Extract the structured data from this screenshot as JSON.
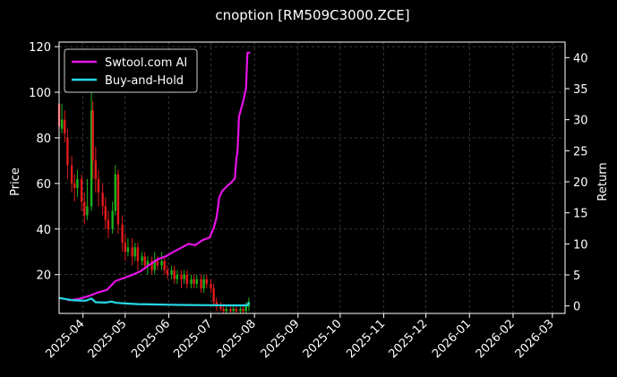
{
  "chart_data": {
    "type": "line",
    "title": "cnoption [RM509C3000.ZCE]",
    "ylabel_left": "Price",
    "ylabel_right": "Return",
    "x_ticks": [
      "2025-04",
      "2025-05",
      "2025-06",
      "2025-07",
      "2025-08",
      "2025-09",
      "2025-10",
      "2025-11",
      "2025-12",
      "2026-01",
      "2026-02",
      "2026-03"
    ],
    "x_range": [
      "2025-03-15",
      "2026-03-10"
    ],
    "y_left_ticks": [
      20,
      40,
      60,
      80,
      100,
      120
    ],
    "y_left_range": [
      3,
      122
    ],
    "y_right_ticks": [
      0,
      5,
      10,
      15,
      20,
      25,
      30,
      35,
      40
    ],
    "y_right_range": [
      -1.2,
      42.5
    ],
    "grid": true,
    "legend_position": "top-left",
    "background": "#000000",
    "up_color": "#1db31d",
    "down_color": "#e31a1a",
    "series": [
      {
        "name": "Swtool.com AI",
        "color": "#e612e6",
        "axis": "right",
        "points": [
          [
            "2025-03-21",
            0.9
          ],
          [
            "2025-03-25",
            1.0
          ],
          [
            "2025-03-30",
            1.2
          ],
          [
            "2025-04-05",
            1.6
          ],
          [
            "2025-04-12",
            2.2
          ],
          [
            "2025-04-18",
            2.6
          ],
          [
            "2025-04-24",
            4.0
          ],
          [
            "2025-04-30",
            4.5
          ],
          [
            "2025-05-06",
            5.0
          ],
          [
            "2025-05-12",
            5.6
          ],
          [
            "2025-05-18",
            6.6
          ],
          [
            "2025-05-24",
            7.5
          ],
          [
            "2025-05-30",
            8.0
          ],
          [
            "2025-06-05",
            8.8
          ],
          [
            "2025-06-11",
            9.5
          ],
          [
            "2025-06-15",
            10.0
          ],
          [
            "2025-06-20",
            9.8
          ],
          [
            "2025-06-25",
            10.6
          ],
          [
            "2025-06-30",
            11.0
          ],
          [
            "2025-07-03",
            12.5
          ],
          [
            "2025-07-05",
            14.2
          ],
          [
            "2025-07-07",
            17.5
          ],
          [
            "2025-07-09",
            18.5
          ],
          [
            "2025-07-12",
            19.2
          ],
          [
            "2025-07-15",
            19.8
          ],
          [
            "2025-07-18",
            20.5
          ],
          [
            "2025-07-19",
            23.5
          ],
          [
            "2025-07-20",
            25.0
          ],
          [
            "2025-07-21",
            30.5
          ],
          [
            "2025-07-24",
            33.0
          ],
          [
            "2025-07-26",
            35.0
          ],
          [
            "2025-07-27",
            40.8
          ],
          [
            "2025-07-29",
            40.8
          ]
        ]
      },
      {
        "name": "Buy-and-Hold",
        "color": "#26d9e6",
        "axis": "right",
        "points": [
          [
            "2025-03-15",
            1.3
          ],
          [
            "2025-03-25",
            0.9
          ],
          [
            "2025-04-03",
            0.85
          ],
          [
            "2025-04-07",
            1.2
          ],
          [
            "2025-04-10",
            0.6
          ],
          [
            "2025-04-17",
            0.55
          ],
          [
            "2025-04-21",
            0.7
          ],
          [
            "2025-04-25",
            0.5
          ],
          [
            "2025-05-01",
            0.4
          ],
          [
            "2025-05-10",
            0.3
          ],
          [
            "2025-05-20",
            0.25
          ],
          [
            "2025-06-01",
            0.2
          ],
          [
            "2025-06-15",
            0.15
          ],
          [
            "2025-07-01",
            0.12
          ],
          [
            "2025-07-15",
            0.1
          ],
          [
            "2025-07-27",
            0.1
          ],
          [
            "2025-07-28",
            0.6
          ]
        ]
      }
    ],
    "candles": [
      [
        "2025-03-15",
        95,
        85,
        118,
        80
      ],
      [
        "2025-03-17",
        84,
        88,
        95,
        82
      ],
      [
        "2025-03-19",
        88,
        82,
        92,
        78
      ],
      [
        "2025-03-21",
        80,
        68,
        84,
        62
      ],
      [
        "2025-03-24",
        68,
        60,
        72,
        56
      ],
      [
        "2025-03-26",
        60,
        58,
        64,
        52
      ],
      [
        "2025-03-28",
        58,
        62,
        66,
        54
      ],
      [
        "2025-03-31",
        62,
        52,
        64,
        48
      ],
      [
        "2025-04-02",
        52,
        46,
        56,
        42
      ],
      [
        "2025-04-04",
        46,
        50,
        62,
        44
      ],
      [
        "2025-04-07",
        50,
        92,
        106,
        48
      ],
      [
        "2025-04-08",
        92,
        70,
        96,
        62
      ],
      [
        "2025-04-10",
        70,
        62,
        76,
        56
      ],
      [
        "2025-04-12",
        62,
        56,
        66,
        50
      ],
      [
        "2025-04-15",
        56,
        50,
        60,
        46
      ],
      [
        "2025-04-17",
        50,
        44,
        54,
        40
      ],
      [
        "2025-04-19",
        44,
        40,
        48,
        36
      ],
      [
        "2025-04-22",
        40,
        48,
        52,
        38
      ],
      [
        "2025-04-24",
        48,
        64,
        68,
        46
      ],
      [
        "2025-04-26",
        64,
        42,
        66,
        38
      ],
      [
        "2025-04-29",
        42,
        34,
        46,
        30
      ],
      [
        "2025-05-01",
        34,
        30,
        38,
        26
      ],
      [
        "2025-05-03",
        30,
        32,
        36,
        28
      ],
      [
        "2025-05-06",
        32,
        28,
        36,
        24
      ],
      [
        "2025-05-08",
        28,
        32,
        34,
        26
      ],
      [
        "2025-05-10",
        32,
        26,
        34,
        22
      ],
      [
        "2025-05-13",
        26,
        28,
        30,
        24
      ],
      [
        "2025-05-15",
        28,
        24,
        30,
        22
      ],
      [
        "2025-05-17",
        24,
        26,
        28,
        20
      ],
      [
        "2025-05-20",
        26,
        22,
        28,
        20
      ],
      [
        "2025-05-22",
        22,
        26,
        30,
        20
      ],
      [
        "2025-05-24",
        26,
        24,
        28,
        22
      ],
      [
        "2025-05-27",
        24,
        26,
        30,
        22
      ],
      [
        "2025-05-29",
        26,
        22,
        28,
        20
      ],
      [
        "2025-05-31",
        22,
        20,
        24,
        18
      ],
      [
        "2025-06-03",
        20,
        22,
        24,
        18
      ],
      [
        "2025-06-05",
        22,
        18,
        24,
        16
      ],
      [
        "2025-06-07",
        18,
        20,
        22,
        16
      ],
      [
        "2025-06-10",
        20,
        18,
        22,
        14
      ],
      [
        "2025-06-12",
        18,
        20,
        22,
        16
      ],
      [
        "2025-06-14",
        20,
        16,
        22,
        14
      ],
      [
        "2025-06-17",
        16,
        18,
        20,
        14
      ],
      [
        "2025-06-19",
        18,
        16,
        20,
        14
      ],
      [
        "2025-06-21",
        16,
        18,
        20,
        14
      ],
      [
        "2025-06-24",
        18,
        14,
        20,
        12
      ],
      [
        "2025-06-26",
        14,
        18,
        20,
        12
      ],
      [
        "2025-06-28",
        18,
        16,
        20,
        14
      ],
      [
        "2025-07-01",
        16,
        14,
        18,
        12
      ],
      [
        "2025-07-03",
        14,
        8,
        16,
        6
      ],
      [
        "2025-07-05",
        8,
        6,
        10,
        4
      ],
      [
        "2025-07-08",
        6,
        5,
        8,
        4
      ],
      [
        "2025-07-10",
        5,
        4,
        7,
        3
      ],
      [
        "2025-07-12",
        4,
        5,
        6,
        3
      ],
      [
        "2025-07-15",
        5,
        4,
        6,
        3
      ],
      [
        "2025-07-17",
        4,
        5,
        6,
        3
      ],
      [
        "2025-07-19",
        5,
        4,
        6,
        3
      ],
      [
        "2025-07-22",
        4,
        5,
        6,
        3
      ],
      [
        "2025-07-24",
        5,
        4,
        7,
        3
      ],
      [
        "2025-07-26",
        4,
        6,
        8,
        3
      ],
      [
        "2025-07-28",
        6,
        8,
        10,
        4
      ]
    ]
  }
}
